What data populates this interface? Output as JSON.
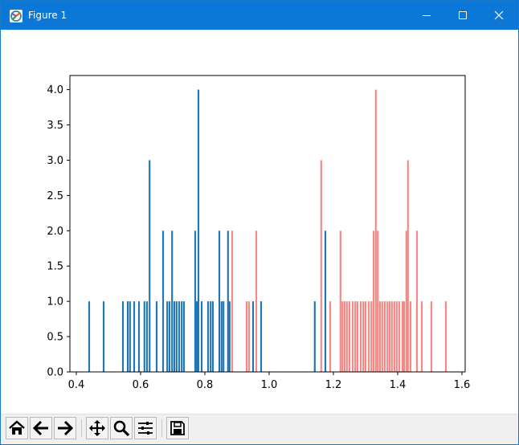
{
  "window": {
    "title": "Figure 1",
    "icon": "matplotlib-figure-icon",
    "titlebar_color": "#0b78d7",
    "controls": [
      "minimize-icon",
      "maximize-icon",
      "close-icon"
    ]
  },
  "toolbar": {
    "buttons": [
      {
        "name": "home-button",
        "icon": "home-icon"
      },
      {
        "name": "back-button",
        "icon": "arrow-left-icon"
      },
      {
        "name": "forward-button",
        "icon": "arrow-right-icon"
      },
      {
        "name": "pan-button",
        "icon": "move-icon"
      },
      {
        "name": "zoom-button",
        "icon": "magnifier-icon"
      },
      {
        "name": "configure-subplots-button",
        "icon": "sliders-icon"
      },
      {
        "name": "save-button",
        "icon": "floppy-disk-icon"
      }
    ]
  },
  "chart_data": {
    "type": "bar",
    "title": "",
    "xlabel": "",
    "ylabel": "",
    "xlim": [
      0.38,
      1.61
    ],
    "ylim": [
      0,
      4.2
    ],
    "x_ticks": [
      "0.4",
      "0.6",
      "0.8",
      "1.0",
      "1.2",
      "1.4",
      "1.6"
    ],
    "y_ticks": [
      "0.0",
      "0.5",
      "1.0",
      "1.5",
      "2.0",
      "2.5",
      "3.0",
      "3.5",
      "4.0"
    ],
    "grid": false,
    "legend": "none",
    "series": [
      {
        "color": "#1f77b4",
        "bin_width": 0.0054,
        "bars": [
          [
            0.44,
            1
          ],
          [
            0.485,
            1
          ],
          [
            0.545,
            1
          ],
          [
            0.56,
            1
          ],
          [
            0.567,
            1
          ],
          [
            0.58,
            1
          ],
          [
            0.595,
            1
          ],
          [
            0.612,
            1
          ],
          [
            0.62,
            1
          ],
          [
            0.628,
            3
          ],
          [
            0.65,
            1
          ],
          [
            0.67,
            2
          ],
          [
            0.683,
            1
          ],
          [
            0.69,
            1
          ],
          [
            0.698,
            2
          ],
          [
            0.705,
            1
          ],
          [
            0.712,
            1
          ],
          [
            0.72,
            1
          ],
          [
            0.728,
            1
          ],
          [
            0.735,
            1
          ],
          [
            0.77,
            2
          ],
          [
            0.775,
            1
          ],
          [
            0.78,
            4
          ],
          [
            0.79,
            1
          ],
          [
            0.81,
            1
          ],
          [
            0.818,
            1
          ],
          [
            0.825,
            1
          ],
          [
            0.845,
            2
          ],
          [
            0.852,
            1
          ],
          [
            0.858,
            1
          ],
          [
            0.872,
            2
          ],
          [
            0.877,
            1
          ],
          [
            0.95,
            1
          ],
          [
            0.975,
            1
          ],
          [
            1.142,
            1
          ],
          [
            1.175,
            2
          ]
        ]
      },
      {
        "color": "#f58785",
        "bin_width": 0.0054,
        "bars": [
          [
            0.885,
            2
          ],
          [
            0.93,
            1
          ],
          [
            0.937,
            1
          ],
          [
            0.96,
            2
          ],
          [
            1.162,
            3
          ],
          [
            1.19,
            1
          ],
          [
            1.222,
            2
          ],
          [
            1.228,
            1
          ],
          [
            1.235,
            1
          ],
          [
            1.242,
            1
          ],
          [
            1.25,
            1
          ],
          [
            1.26,
            1
          ],
          [
            1.268,
            1
          ],
          [
            1.275,
            1
          ],
          [
            1.285,
            1
          ],
          [
            1.293,
            1
          ],
          [
            1.3,
            1
          ],
          [
            1.31,
            1
          ],
          [
            1.318,
            1
          ],
          [
            1.325,
            2
          ],
          [
            1.332,
            4
          ],
          [
            1.338,
            2
          ],
          [
            1.345,
            1
          ],
          [
            1.352,
            1
          ],
          [
            1.36,
            1
          ],
          [
            1.368,
            1
          ],
          [
            1.375,
            1
          ],
          [
            1.382,
            1
          ],
          [
            1.39,
            1
          ],
          [
            1.397,
            1
          ],
          [
            1.405,
            1
          ],
          [
            1.415,
            1
          ],
          [
            1.42,
            1
          ],
          [
            1.427,
            2
          ],
          [
            1.432,
            3
          ],
          [
            1.44,
            1
          ],
          [
            1.46,
            2
          ],
          [
            1.475,
            1
          ],
          [
            1.505,
            1
          ],
          [
            1.55,
            1
          ]
        ]
      }
    ]
  }
}
